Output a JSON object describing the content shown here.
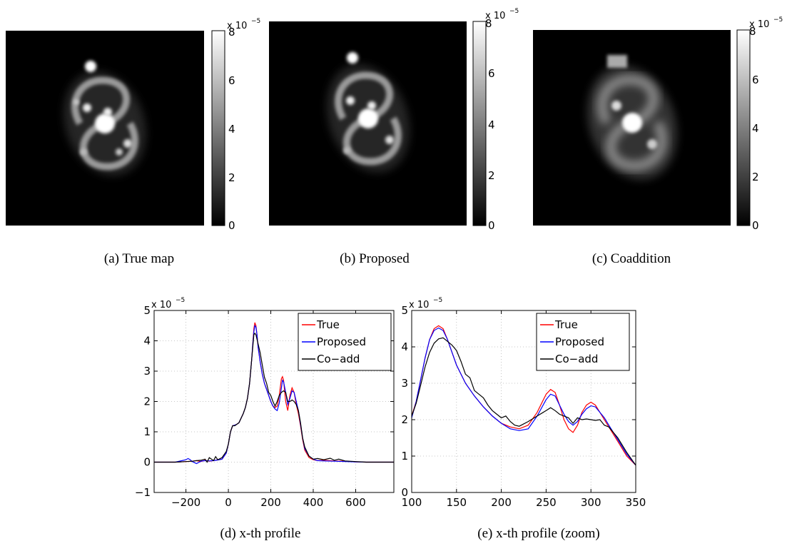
{
  "colormap": {
    "min": "#000000",
    "max": "#ffffff"
  },
  "images": [
    {
      "caption": "(a)  True map",
      "colorbar": {
        "ticks": [
          "0",
          "2",
          "4",
          "6",
          "8"
        ],
        "exponent_base": "x 10",
        "exponent_power": "−5"
      }
    },
    {
      "caption": "(b)  Proposed",
      "colorbar": {
        "ticks": [
          "0",
          "2",
          "4",
          "6",
          "8"
        ],
        "exponent_base": "x 10",
        "exponent_power": "−5"
      }
    },
    {
      "caption": "(c)  Coaddition",
      "colorbar": {
        "ticks": [
          "0",
          "2",
          "4",
          "6",
          "8"
        ],
        "exponent_base": "x 10",
        "exponent_power": "−5"
      }
    }
  ],
  "chart_data": [
    {
      "type": "line",
      "caption": "(d)  x-th profile",
      "xlim": [
        -350,
        780
      ],
      "ylim": [
        -1,
        5
      ],
      "xticks": [
        -200,
        0,
        200,
        400,
        600
      ],
      "yticks": [
        -1,
        0,
        1,
        2,
        3,
        4,
        5
      ],
      "y_exponent_base": "x 10",
      "y_exponent_power": "−5",
      "grid": true,
      "legend_position": "top-right",
      "series": [
        {
          "name": "True",
          "color": "#ff0000",
          "x": [
            -350,
            -250,
            -200,
            -170,
            -150,
            -130,
            -110,
            -90,
            -70,
            -50,
            -30,
            -10,
            0,
            10,
            20,
            30,
            40,
            50,
            60,
            70,
            80,
            90,
            100,
            110,
            115,
            120,
            125,
            130,
            135,
            140,
            150,
            160,
            170,
            180,
            190,
            200,
            210,
            220,
            230,
            240,
            250,
            255,
            260,
            270,
            280,
            290,
            300,
            310,
            320,
            330,
            340,
            350,
            360,
            380,
            400,
            420,
            450,
            500,
            550,
            600,
            650,
            700,
            780
          ],
          "y": [
            0,
            0,
            0.02,
            0.03,
            0.05,
            0.02,
            0.06,
            0.03,
            0.05,
            0.08,
            0.1,
            0.3,
            0.6,
            1.0,
            1.2,
            1.22,
            1.25,
            1.3,
            1.45,
            1.6,
            1.8,
            2.1,
            2.6,
            3.4,
            3.9,
            4.4,
            4.6,
            4.5,
            4.2,
            3.8,
            3.3,
            2.9,
            2.6,
            2.4,
            2.2,
            2.0,
            1.85,
            1.8,
            1.85,
            2.2,
            2.75,
            2.82,
            2.7,
            2.0,
            1.7,
            2.2,
            2.45,
            2.3,
            1.9,
            1.6,
            1.2,
            0.75,
            0.4,
            0.15,
            0.08,
            0.05,
            0.06,
            0.04,
            0.03,
            0.01,
            0,
            0,
            0
          ]
        },
        {
          "name": "Proposed",
          "color": "#0000ff",
          "x": [
            -350,
            -250,
            -200,
            -190,
            -180,
            -170,
            -150,
            -130,
            -110,
            -90,
            -70,
            -50,
            -30,
            -10,
            0,
            10,
            20,
            30,
            40,
            50,
            60,
            70,
            80,
            90,
            100,
            110,
            115,
            120,
            125,
            130,
            135,
            140,
            150,
            160,
            170,
            180,
            190,
            200,
            210,
            220,
            230,
            240,
            250,
            255,
            260,
            270,
            280,
            290,
            300,
            310,
            320,
            330,
            340,
            350,
            360,
            380,
            400,
            420,
            450,
            500,
            550,
            600,
            650,
            700,
            780
          ],
          "y": [
            0,
            0,
            0.08,
            0.12,
            0.08,
            0.02,
            -0.05,
            0.03,
            0.05,
            0.04,
            0.05,
            0.07,
            0.1,
            0.3,
            0.6,
            1.0,
            1.2,
            1.22,
            1.25,
            1.3,
            1.45,
            1.6,
            1.8,
            2.1,
            2.6,
            3.4,
            3.9,
            4.3,
            4.5,
            4.45,
            4.2,
            3.8,
            3.3,
            2.9,
            2.6,
            2.4,
            2.2,
            2.0,
            1.85,
            1.75,
            1.7,
            1.95,
            2.45,
            2.7,
            2.65,
            2.3,
            1.9,
            2.1,
            2.35,
            2.3,
            2.0,
            1.7,
            1.25,
            0.8,
            0.45,
            0.2,
            0.1,
            0.05,
            0.04,
            0.03,
            0.02,
            0.01,
            0,
            0,
            0
          ]
        },
        {
          "name": "Co−add",
          "color": "#000000",
          "x": [
            -350,
            -250,
            -200,
            -170,
            -150,
            -130,
            -110,
            -100,
            -90,
            -70,
            -60,
            -50,
            -30,
            -10,
            0,
            10,
            20,
            30,
            40,
            50,
            60,
            70,
            80,
            90,
            100,
            110,
            115,
            120,
            125,
            130,
            135,
            140,
            150,
            160,
            170,
            180,
            190,
            200,
            210,
            220,
            230,
            240,
            250,
            260,
            270,
            280,
            290,
            300,
            310,
            320,
            330,
            340,
            350,
            360,
            380,
            400,
            420,
            450,
            480,
            500,
            520,
            550,
            600,
            650,
            700,
            780
          ],
          "y": [
            0,
            0,
            0.02,
            0.03,
            0.05,
            0.06,
            0.1,
            0.0,
            0.15,
            0.05,
            0.18,
            0.08,
            0.15,
            0.35,
            0.6,
            1.0,
            1.2,
            1.2,
            1.25,
            1.3,
            1.45,
            1.6,
            1.8,
            2.1,
            2.6,
            3.4,
            3.8,
            4.2,
            4.25,
            4.2,
            4.05,
            3.9,
            3.6,
            3.2,
            2.8,
            2.6,
            2.3,
            2.2,
            2.0,
            1.85,
            2.0,
            2.2,
            2.3,
            2.35,
            2.3,
            2.0,
            2.0,
            2.05,
            2.0,
            1.9,
            1.7,
            1.3,
            0.8,
            0.5,
            0.2,
            0.1,
            0.12,
            0.08,
            0.13,
            0.06,
            0.1,
            0.04,
            0.02,
            0,
            0,
            0
          ]
        }
      ]
    },
    {
      "type": "line",
      "caption": "(e)  x-th profile (zoom)",
      "xlim": [
        100,
        350
      ],
      "ylim": [
        0,
        5
      ],
      "xticks": [
        100,
        150,
        200,
        250,
        300,
        350
      ],
      "yticks": [
        0,
        1,
        2,
        3,
        4,
        5
      ],
      "y_exponent_base": "x 10",
      "y_exponent_power": "−5",
      "grid": true,
      "legend_position": "top-right",
      "series": [
        {
          "name": "True",
          "color": "#ff0000",
          "x": [
            100,
            105,
            110,
            115,
            120,
            125,
            130,
            135,
            140,
            145,
            150,
            160,
            170,
            180,
            190,
            200,
            210,
            220,
            230,
            240,
            250,
            255,
            260,
            265,
            270,
            275,
            280,
            285,
            290,
            295,
            300,
            305,
            310,
            315,
            320,
            330,
            340,
            350
          ],
          "y": [
            2.1,
            2.5,
            3.1,
            3.7,
            4.2,
            4.5,
            4.58,
            4.5,
            4.2,
            3.85,
            3.5,
            3.0,
            2.65,
            2.35,
            2.1,
            1.9,
            1.8,
            1.75,
            1.85,
            2.2,
            2.7,
            2.83,
            2.75,
            2.4,
            2.0,
            1.75,
            1.65,
            1.85,
            2.2,
            2.4,
            2.48,
            2.4,
            2.2,
            2.0,
            1.8,
            1.4,
            1.0,
            0.75
          ]
        },
        {
          "name": "Proposed",
          "color": "#0000ff",
          "x": [
            100,
            105,
            110,
            115,
            120,
            125,
            130,
            135,
            140,
            145,
            150,
            160,
            170,
            180,
            190,
            200,
            210,
            220,
            230,
            240,
            250,
            255,
            260,
            265,
            270,
            275,
            280,
            285,
            290,
            295,
            300,
            305,
            310,
            315,
            320,
            330,
            340,
            350
          ],
          "y": [
            2.05,
            2.5,
            3.1,
            3.7,
            4.2,
            4.45,
            4.52,
            4.45,
            4.2,
            3.85,
            3.5,
            3.0,
            2.65,
            2.35,
            2.1,
            1.9,
            1.75,
            1.7,
            1.75,
            2.1,
            2.55,
            2.7,
            2.65,
            2.4,
            2.15,
            1.95,
            1.85,
            1.95,
            2.15,
            2.3,
            2.38,
            2.35,
            2.2,
            2.05,
            1.85,
            1.45,
            1.05,
            0.75
          ]
        },
        {
          "name": "Co−add",
          "color": "#000000",
          "x": [
            100,
            105,
            110,
            115,
            120,
            125,
            130,
            135,
            140,
            145,
            150,
            155,
            160,
            165,
            170,
            175,
            180,
            185,
            190,
            195,
            200,
            205,
            210,
            215,
            220,
            230,
            240,
            250,
            255,
            260,
            265,
            270,
            275,
            280,
            285,
            290,
            295,
            300,
            305,
            310,
            315,
            320,
            330,
            340,
            350
          ],
          "y": [
            2.1,
            2.45,
            2.95,
            3.45,
            3.85,
            4.1,
            4.22,
            4.25,
            4.15,
            4.05,
            3.9,
            3.6,
            3.25,
            3.15,
            2.8,
            2.7,
            2.6,
            2.4,
            2.25,
            2.15,
            2.05,
            2.1,
            1.95,
            1.85,
            1.82,
            1.95,
            2.1,
            2.25,
            2.33,
            2.25,
            2.15,
            2.1,
            2.05,
            1.9,
            2.05,
            2.0,
            2.02,
            2.0,
            1.98,
            2.0,
            1.85,
            1.8,
            1.5,
            1.1,
            0.75
          ]
        }
      ]
    }
  ]
}
